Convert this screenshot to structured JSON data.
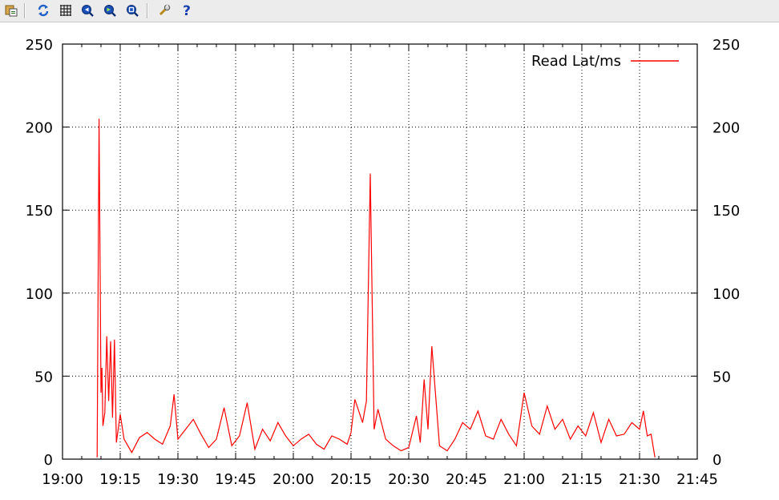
{
  "toolbar": {
    "buttons": [
      {
        "name": "copy-clipboard-icon",
        "icon": "copy-to-clipboard"
      },
      {
        "name": "replot-icon",
        "icon": "replot"
      },
      {
        "name": "grid-icon",
        "icon": "grid"
      },
      {
        "name": "zoom-previous-icon",
        "icon": "zoom-previous"
      },
      {
        "name": "zoom-next-icon",
        "icon": "zoom-next"
      },
      {
        "name": "unzoom-icon",
        "icon": "unzoom"
      },
      {
        "name": "options-icon",
        "icon": "wrench"
      },
      {
        "name": "help-icon",
        "icon": "question-mark"
      }
    ]
  },
  "chart_data": {
    "type": "line",
    "title": "",
    "xlabel": "",
    "ylabel": "",
    "x_axis_kind": "time",
    "xlim": [
      "19:00",
      "21:45"
    ],
    "ylim": [
      0,
      250
    ],
    "x_ticks": [
      "19:00",
      "19:15",
      "19:30",
      "19:45",
      "20:00",
      "20:15",
      "20:30",
      "20:45",
      "21:00",
      "21:15",
      "21:30",
      "21:45"
    ],
    "y_ticks": [
      "0",
      "50",
      "100",
      "150",
      "200",
      "250"
    ],
    "y2_ticks": [
      "0",
      "50",
      "100",
      "150",
      "200",
      "250"
    ],
    "grid": true,
    "legend_position": "top-right",
    "series": [
      {
        "name": "Read Lat/ms",
        "color": "#ff0000",
        "x": [
          "19:09",
          "19:09:30",
          "19:10",
          "19:10:15",
          "19:10:30",
          "19:11",
          "19:11:30",
          "19:12",
          "19:12:30",
          "19:13",
          "19:13:30",
          "19:14",
          "19:15",
          "19:16",
          "19:18",
          "19:20",
          "19:22",
          "19:24",
          "19:26",
          "19:28",
          "19:29",
          "19:30",
          "19:32",
          "19:34",
          "19:36",
          "19:38",
          "19:40",
          "19:42",
          "19:44",
          "19:46",
          "19:48",
          "19:50",
          "19:52",
          "19:54",
          "19:56",
          "19:58",
          "20:00",
          "20:02",
          "20:04",
          "20:06",
          "20:08",
          "20:10",
          "20:12",
          "20:14",
          "20:15",
          "20:16",
          "20:18",
          "20:19",
          "20:20",
          "20:21",
          "20:22",
          "20:24",
          "20:26",
          "20:28",
          "20:30",
          "20:32",
          "20:33",
          "20:34",
          "20:35",
          "20:36",
          "20:38",
          "20:40",
          "20:42",
          "20:44",
          "20:46",
          "20:48",
          "20:50",
          "20:52",
          "20:54",
          "20:56",
          "20:58",
          "21:00",
          "21:02",
          "21:04",
          "21:06",
          "21:08",
          "21:10",
          "21:12",
          "21:14",
          "21:16",
          "21:18",
          "21:20",
          "21:22",
          "21:24",
          "21:26",
          "21:28",
          "21:30",
          "21:31",
          "21:32",
          "21:33",
          "21:34"
        ],
        "y": [
          1,
          205,
          40,
          55,
          20,
          28,
          74,
          35,
          71,
          25,
          72,
          10,
          27,
          12,
          4,
          13,
          16,
          12,
          9,
          20,
          39,
          12,
          18,
          24,
          15,
          7,
          12,
          31,
          8,
          14,
          34,
          6,
          18,
          11,
          22,
          14,
          8,
          12,
          15,
          9,
          6,
          14,
          12,
          9,
          16,
          36,
          22,
          35,
          172,
          18,
          30,
          12,
          8,
          5,
          7,
          26,
          10,
          48,
          18,
          68,
          8,
          5,
          12,
          22,
          18,
          29,
          14,
          12,
          24,
          15,
          8,
          40,
          20,
          15,
          32,
          18,
          24,
          12,
          20,
          14,
          28,
          10,
          24,
          14,
          15,
          22,
          18,
          29,
          14,
          15,
          1
        ]
      }
    ]
  }
}
